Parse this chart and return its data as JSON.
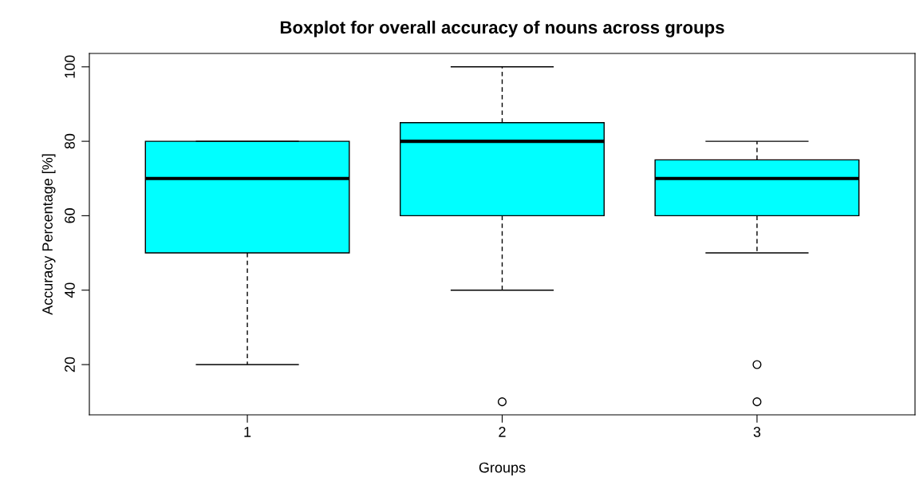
{
  "chart_data": {
    "type": "box",
    "title": "Boxplot for overall accuracy of nouns across groups",
    "xlabel": "Groups",
    "ylabel": "Accuracy Percentage [%]",
    "categories": [
      "1",
      "2",
      "3"
    ],
    "series": [
      {
        "color": "#00ffff",
        "boxes": [
          {
            "low": 20,
            "q1": 50,
            "median": 70,
            "q3": 80,
            "high": 80
          },
          {
            "low": 40,
            "q1": 60,
            "median": 80,
            "q3": 85,
            "high": 100,
            "outliers": [
              10
            ]
          },
          {
            "low": 50,
            "q1": 60,
            "median": 70,
            "q3": 75,
            "high": 80,
            "outliers": [
              10,
              20
            ]
          }
        ]
      }
    ],
    "ylim": [
      6.5,
      103.6
    ],
    "yticks": [
      20,
      40,
      60,
      80,
      100
    ],
    "grid": false
  }
}
